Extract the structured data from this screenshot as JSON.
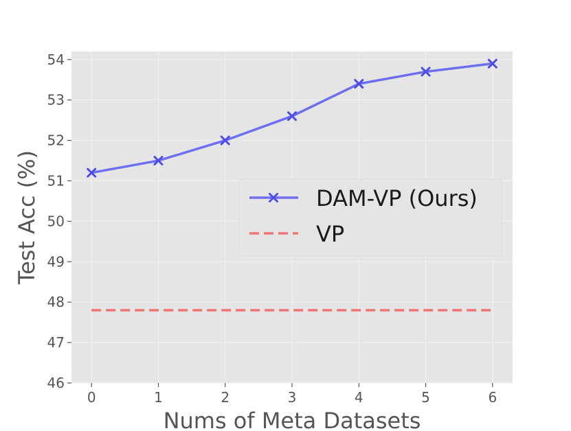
{
  "chart_data": {
    "type": "line",
    "x": [
      0,
      1,
      2,
      3,
      4,
      5,
      6
    ],
    "xlabel": "Nums of Meta Datasets",
    "ylabel": "Test Acc (%)",
    "xlim": [
      -0.3,
      6.3
    ],
    "ylim": [
      46,
      54.2
    ],
    "xticks": [
      0,
      1,
      2,
      3,
      4,
      5,
      6
    ],
    "yticks": [
      46,
      47,
      48,
      49,
      50,
      51,
      52,
      53,
      54
    ],
    "grid": true,
    "legend_position": "center-right",
    "series": [
      {
        "name": "DAM-VP (Ours)",
        "values": [
          51.2,
          51.5,
          52.0,
          52.6,
          53.4,
          53.7,
          53.9
        ],
        "color": "#6e6ef0",
        "style": "solid",
        "marker": "x"
      },
      {
        "name": "VP",
        "values": [
          47.8,
          47.8,
          47.8,
          47.8,
          47.8,
          47.8,
          47.8
        ],
        "color": "#f07474",
        "style": "dashed",
        "marker": "none"
      }
    ]
  },
  "colors": {
    "plot_background": "#e5e5e5",
    "grid": "#f2f2f2",
    "text": "#555555"
  }
}
